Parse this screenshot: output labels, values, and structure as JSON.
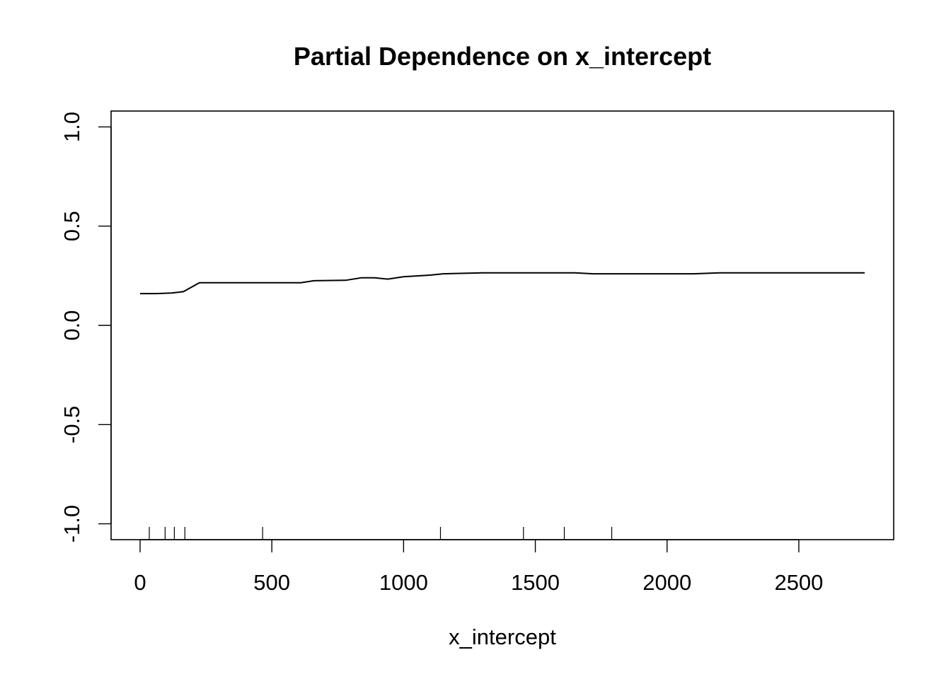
{
  "chart_data": {
    "type": "line",
    "title": "Partial Dependence on x_intercept",
    "xlabel": "x_intercept",
    "ylabel": "",
    "xlim": [
      -110,
      2860
    ],
    "ylim": [
      -1.08,
      1.08
    ],
    "x_ticks": [
      0,
      500,
      1000,
      1500,
      2000,
      2500
    ],
    "x_tick_labels": [
      "0",
      "500",
      "1000",
      "1500",
      "2000",
      "2500"
    ],
    "y_ticks": [
      -1.0,
      -0.5,
      0.0,
      0.5,
      1.0
    ],
    "y_tick_labels": [
      "-1.0",
      "-0.5",
      "0.0",
      "0.5",
      "1.0"
    ],
    "grid": false,
    "series": [
      {
        "x": [
          0,
          60,
          120,
          165,
          225,
          300,
          400,
          500,
          610,
          660,
          780,
          840,
          890,
          940,
          1000,
          1100,
          1150,
          1300,
          1500,
          1650,
          1720,
          1900,
          2100,
          2200,
          2500,
          2750
        ],
        "y": [
          0.16,
          0.16,
          0.163,
          0.17,
          0.215,
          0.215,
          0.215,
          0.215,
          0.215,
          0.225,
          0.227,
          0.24,
          0.24,
          0.233,
          0.245,
          0.253,
          0.26,
          0.265,
          0.265,
          0.265,
          0.26,
          0.26,
          0.26,
          0.265,
          0.265,
          0.265
        ]
      }
    ],
    "rug_x": [
      35,
      95,
      130,
      170,
      465,
      1140,
      1455,
      1610,
      1790
    ]
  }
}
